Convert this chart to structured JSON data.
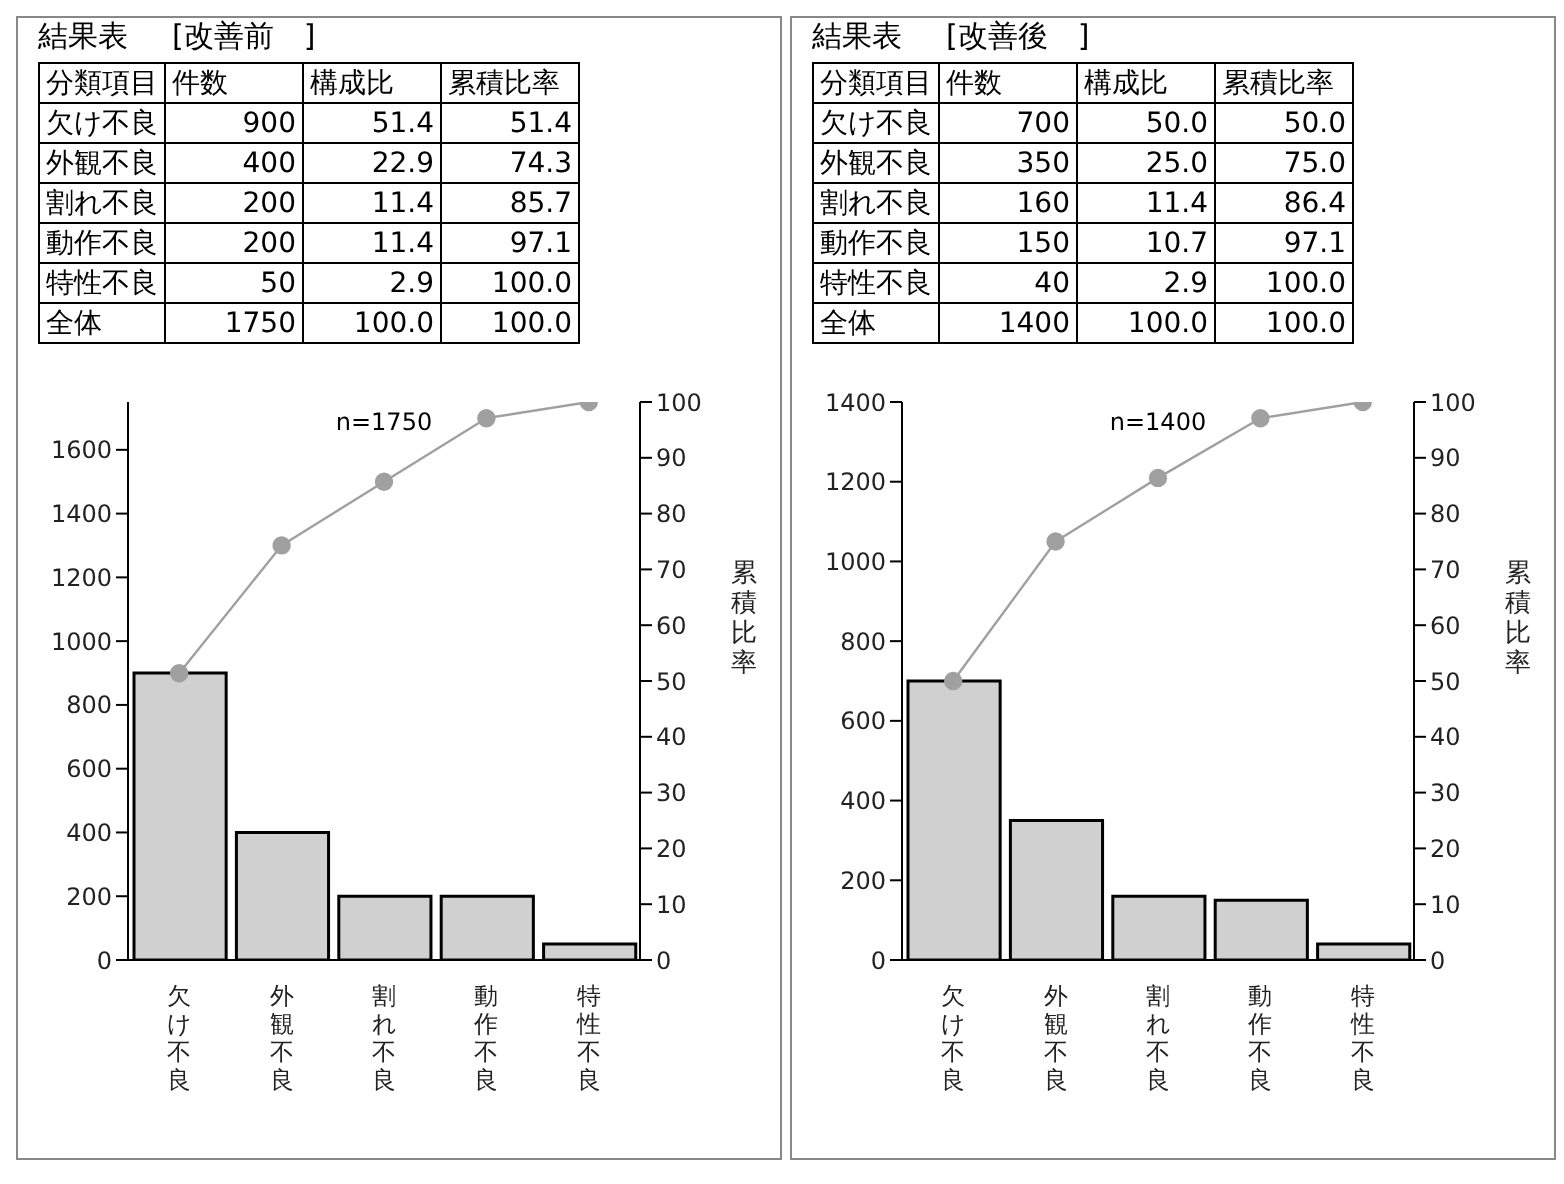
{
  "chart_data": [
    {
      "type": "bar",
      "title": "結果表",
      "subtitle": "[改善前　]",
      "y2label": "累積比率",
      "categories": [
        "欠け不良",
        "外観不良",
        "割れ不良",
        "動作不良",
        "特性不良"
      ],
      "series": [
        {
          "color": "#d0d0d0",
          "values": [
            900,
            400,
            200,
            200,
            50
          ]
        },
        {
          "type": "line",
          "axis": "y2",
          "color": "#a0a0a0",
          "values": [
            51.4,
            74.3,
            85.7,
            97.1,
            100.0
          ]
        }
      ],
      "annotations": [
        "分類項目",
        "件数",
        "構成比",
        "累積比率",
        "欠け不良",
        "900",
        "51.4",
        "51.4",
        "外観不良",
        "400",
        "22.9",
        "74.3",
        "割れ不良",
        "200",
        "11.4",
        "85.7",
        "動作不良",
        "200",
        "11.4",
        "97.1",
        "特性不良",
        "50",
        "2.9",
        "100.0",
        "全体",
        "1750",
        "100.0",
        "100.0",
        "n=1750"
      ],
      "ylim": [
        0,
        1750
      ],
      "yticks": [
        0,
        200,
        400,
        600,
        800,
        1000,
        1200,
        1400,
        1600
      ],
      "y2lim": [
        0,
        100
      ],
      "y2ticks": [
        0,
        10,
        20,
        30,
        40,
        50,
        60,
        70,
        80,
        90,
        100
      ],
      "marker": "circle"
    },
    {
      "type": "bar",
      "title": "結果表",
      "subtitle": "[改善後　]",
      "y2label": "累積比率",
      "categories": [
        "欠け不良",
        "外観不良",
        "割れ不良",
        "動作不良",
        "特性不良"
      ],
      "series": [
        {
          "color": "#d0d0d0",
          "values": [
            700,
            350,
            160,
            150,
            40
          ]
        },
        {
          "type": "line",
          "axis": "y2",
          "color": "#a0a0a0",
          "values": [
            50.0,
            75.0,
            86.4,
            97.1,
            100.0
          ]
        }
      ],
      "annotations": [
        "分類項目",
        "件数",
        "構成比",
        "累積比率",
        "欠け不良",
        "700",
        "50.0",
        "50.0",
        "外観不良",
        "350",
        "25.0",
        "75.0",
        "割れ不良",
        "160",
        "11.4",
        "86.4",
        "動作不良",
        "150",
        "10.7",
        "97.1",
        "特性不良",
        "40",
        "2.9",
        "100.0",
        "全体",
        "1400",
        "100.0",
        "100.0",
        "n=1400"
      ],
      "ylim": [
        0,
        1400
      ],
      "yticks": [
        0,
        200,
        400,
        600,
        800,
        1000,
        1200,
        1400
      ],
      "y2lim": [
        0,
        100
      ],
      "y2ticks": [
        0,
        10,
        20,
        30,
        40,
        50,
        60,
        70,
        80,
        90,
        100
      ],
      "marker": "circle"
    }
  ]
}
